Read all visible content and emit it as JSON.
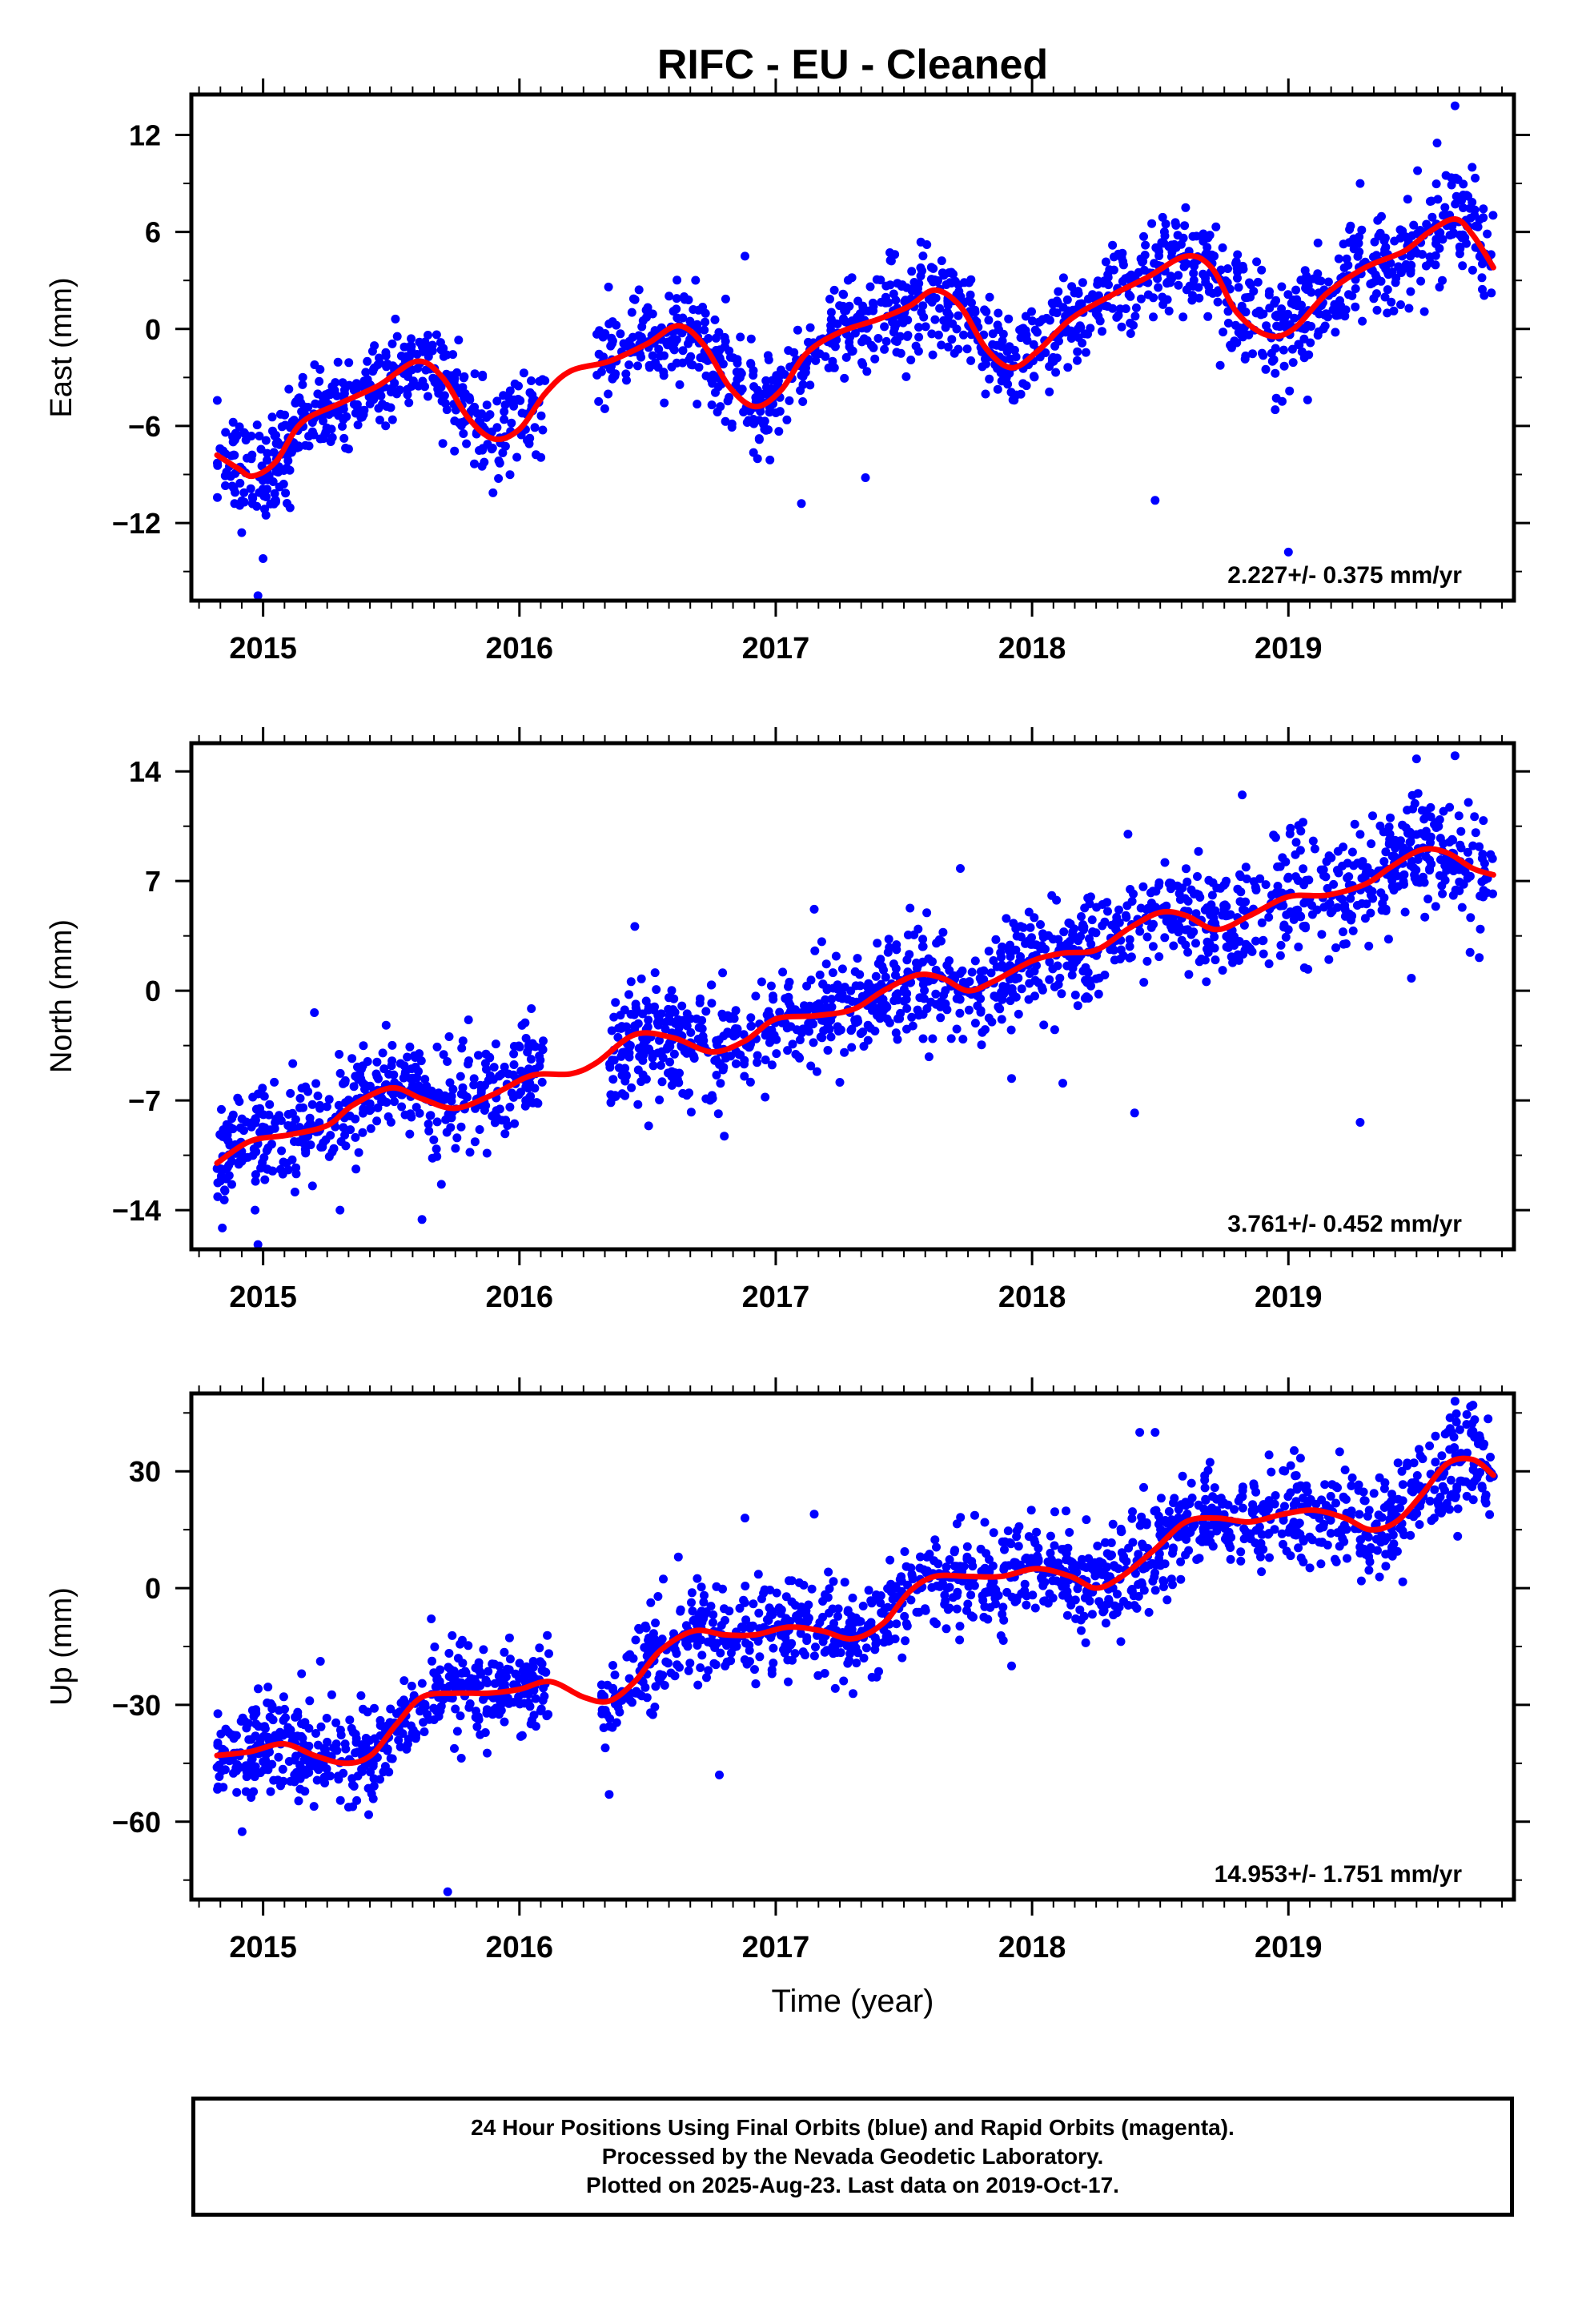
{
  "title": "RIFC  - EU - Cleaned",
  "footer": {
    "line1": "24 Hour Positions Using Final Orbits (blue) and Rapid Orbits (magenta).",
    "line2": "Processed by the Nevada Geodetic Laboratory.",
    "line3": "Plotted on 2025-Aug-23. Last data on 2019-Oct-17."
  },
  "colors": {
    "points": "#0000ff",
    "fit": "#ff0000",
    "axes": "#000000"
  },
  "chart_data": [
    {
      "type": "scatter",
      "panel": "east",
      "ylabel": "East (mm)",
      "xlabel": "",
      "xlim": [
        2014.72,
        2019.88
      ],
      "ylim": [
        -16.8,
        14.5
      ],
      "yticks": [
        12,
        6,
        0,
        -6,
        -12
      ],
      "xticks": [
        2015,
        2016,
        2017,
        2018,
        2019
      ],
      "rate_label": "2.227+/- 0.375 mm/yr",
      "fit_line": [
        [
          2014.82,
          -7.8
        ],
        [
          2014.9,
          -8.6
        ],
        [
          2014.96,
          -9.1
        ],
        [
          2015.05,
          -8.2
        ],
        [
          2015.15,
          -5.8
        ],
        [
          2015.3,
          -4.6
        ],
        [
          2015.45,
          -3.5
        ],
        [
          2015.6,
          -2.0
        ],
        [
          2015.7,
          -3.0
        ],
        [
          2015.8,
          -5.5
        ],
        [
          2015.9,
          -6.8
        ],
        [
          2016.0,
          -6.2
        ],
        [
          2016.1,
          -4.0
        ],
        [
          2016.2,
          -2.6
        ],
        [
          2016.35,
          -2.0
        ],
        [
          2016.5,
          -0.9
        ],
        [
          2016.62,
          0.2
        ],
        [
          2016.72,
          -1.0
        ],
        [
          2016.82,
          -3.6
        ],
        [
          2016.92,
          -4.8
        ],
        [
          2017.02,
          -3.8
        ],
        [
          2017.12,
          -1.5
        ],
        [
          2017.25,
          -0.2
        ],
        [
          2017.4,
          0.6
        ],
        [
          2017.52,
          1.4
        ],
        [
          2017.62,
          2.4
        ],
        [
          2017.72,
          1.4
        ],
        [
          2017.82,
          -1.2
        ],
        [
          2017.92,
          -2.4
        ],
        [
          2018.02,
          -1.4
        ],
        [
          2018.15,
          0.6
        ],
        [
          2018.3,
          2.0
        ],
        [
          2018.45,
          3.2
        ],
        [
          2018.6,
          4.5
        ],
        [
          2018.7,
          3.8
        ],
        [
          2018.8,
          1.0
        ],
        [
          2018.92,
          -0.4
        ],
        [
          2019.02,
          0.0
        ],
        [
          2019.15,
          2.2
        ],
        [
          2019.3,
          3.8
        ],
        [
          2019.45,
          4.8
        ],
        [
          2019.55,
          6.0
        ],
        [
          2019.65,
          6.8
        ],
        [
          2019.72,
          5.8
        ],
        [
          2019.8,
          3.8
        ]
      ],
      "cloud": [
        {
          "x0": 2014.82,
          "x1": 2015.1,
          "n": 110,
          "base": -9.0,
          "slope": 0,
          "spread": 1.6
        },
        {
          "x0": 2015.1,
          "x1": 2015.55,
          "n": 170,
          "base": -5.0,
          "slope": 3.5,
          "spread": 1.2
        },
        {
          "x0": 2015.55,
          "x1": 2015.8,
          "n": 90,
          "base": -2.5,
          "slope": -10,
          "spread": 1.4
        },
        {
          "x0": 2015.8,
          "x1": 2016.1,
          "n": 90,
          "base": -6.2,
          "slope": 4,
          "spread": 1.4
        },
        {
          "x0": 2016.3,
          "x1": 2016.75,
          "n": 160,
          "base": -1.0,
          "slope": 2,
          "spread": 1.5
        },
        {
          "x0": 2016.75,
          "x1": 2017.05,
          "n": 110,
          "base": -3.8,
          "slope": 0,
          "spread": 1.6
        },
        {
          "x0": 2017.05,
          "x1": 2017.7,
          "n": 230,
          "base": -1.0,
          "slope": 5,
          "spread": 1.5
        },
        {
          "x0": 2017.7,
          "x1": 2018.05,
          "n": 120,
          "base": -1.2,
          "slope": -2,
          "spread": 1.5
        },
        {
          "x0": 2018.05,
          "x1": 2018.72,
          "n": 230,
          "base": 0.8,
          "slope": 5,
          "spread": 1.4
        },
        {
          "x0": 2018.72,
          "x1": 2019.05,
          "n": 120,
          "base": 0.0,
          "slope": 0,
          "spread": 1.8
        },
        {
          "x0": 2019.05,
          "x1": 2019.8,
          "n": 260,
          "base": 2.4,
          "slope": 5.5,
          "spread": 1.6
        }
      ],
      "outliers": [
        [
          2014.98,
          -16.5
        ],
        [
          2015.0,
          -14.2
        ],
        [
          2017.1,
          -10.8
        ],
        [
          2017.35,
          -9.2
        ],
        [
          2018.48,
          -10.6
        ],
        [
          2019.0,
          -13.8
        ],
        [
          2019.65,
          13.8
        ],
        [
          2019.58,
          11.5
        ],
        [
          2019.28,
          9.0
        ],
        [
          2016.88,
          4.5
        ]
      ]
    },
    {
      "type": "scatter",
      "panel": "north",
      "ylabel": "North (mm)",
      "xlabel": "",
      "xlim": [
        2014.72,
        2019.88
      ],
      "ylim": [
        -16.5,
        15.8
      ],
      "yticks": [
        14,
        7,
        0,
        -7,
        -14
      ],
      "xticks": [
        2015,
        2016,
        2017,
        2018,
        2019
      ],
      "rate_label": "3.761+/- 0.452 mm/yr",
      "fit_line": [
        [
          2014.82,
          -11.0
        ],
        [
          2014.95,
          -9.6
        ],
        [
          2015.1,
          -9.2
        ],
        [
          2015.25,
          -8.6
        ],
        [
          2015.35,
          -7.3
        ],
        [
          2015.5,
          -6.2
        ],
        [
          2015.62,
          -6.9
        ],
        [
          2015.75,
          -7.5
        ],
        [
          2015.9,
          -6.6
        ],
        [
          2016.05,
          -5.4
        ],
        [
          2016.2,
          -5.3
        ],
        [
          2016.3,
          -4.6
        ],
        [
          2016.45,
          -2.8
        ],
        [
          2016.6,
          -3.0
        ],
        [
          2016.75,
          -3.9
        ],
        [
          2016.88,
          -3.2
        ],
        [
          2017.0,
          -1.8
        ],
        [
          2017.15,
          -1.6
        ],
        [
          2017.3,
          -1.2
        ],
        [
          2017.42,
          0.0
        ],
        [
          2017.55,
          1.0
        ],
        [
          2017.65,
          0.8
        ],
        [
          2017.75,
          0.0
        ],
        [
          2017.85,
          0.6
        ],
        [
          2018.0,
          1.9
        ],
        [
          2018.12,
          2.4
        ],
        [
          2018.25,
          2.6
        ],
        [
          2018.38,
          4.0
        ],
        [
          2018.5,
          5.0
        ],
        [
          2018.6,
          4.8
        ],
        [
          2018.72,
          3.9
        ],
        [
          2018.85,
          4.8
        ],
        [
          2019.0,
          6.0
        ],
        [
          2019.15,
          6.1
        ],
        [
          2019.3,
          6.8
        ],
        [
          2019.4,
          7.9
        ],
        [
          2019.52,
          9.0
        ],
        [
          2019.62,
          8.8
        ],
        [
          2019.72,
          7.8
        ],
        [
          2019.8,
          7.4
        ]
      ],
      "cloud": [
        {
          "x0": 2014.82,
          "x1": 2015.4,
          "n": 220,
          "base": -9.5,
          "slope": 2,
          "spread": 1.8
        },
        {
          "x0": 2015.4,
          "x1": 2016.1,
          "n": 240,
          "base": -7.0,
          "slope": 1.5,
          "spread": 1.7
        },
        {
          "x0": 2016.35,
          "x1": 2017.0,
          "n": 260,
          "base": -3.5,
          "slope": 1.5,
          "spread": 1.7
        },
        {
          "x0": 2017.0,
          "x1": 2017.9,
          "n": 320,
          "base": -1.8,
          "slope": 2.5,
          "spread": 1.7
        },
        {
          "x0": 2017.9,
          "x1": 2018.7,
          "n": 280,
          "base": 1.6,
          "slope": 3.5,
          "spread": 1.7
        },
        {
          "x0": 2018.7,
          "x1": 2019.3,
          "n": 200,
          "base": 4.2,
          "slope": 3.5,
          "spread": 1.9
        },
        {
          "x0": 2019.3,
          "x1": 2019.8,
          "n": 200,
          "base": 7.2,
          "slope": 2,
          "spread": 1.8
        }
      ],
      "outliers": [
        [
          2014.98,
          -16.2
        ],
        [
          2015.3,
          -14.0
        ],
        [
          2015.62,
          -14.6
        ],
        [
          2015.2,
          -1.4
        ],
        [
          2015.48,
          -2.2
        ],
        [
          2016.45,
          4.1
        ],
        [
          2017.15,
          5.2
        ],
        [
          2017.72,
          7.8
        ],
        [
          2017.92,
          -5.6
        ],
        [
          2018.12,
          -5.9
        ],
        [
          2018.4,
          -7.8
        ],
        [
          2018.82,
          12.5
        ],
        [
          2019.28,
          -8.4
        ],
        [
          2019.5,
          14.8
        ],
        [
          2019.65,
          15.0
        ],
        [
          2019.48,
          0.8
        ]
      ]
    },
    {
      "type": "scatter",
      "panel": "up",
      "ylabel": "Up (mm)",
      "xlabel": "Time (year)",
      "xlim": [
        2014.72,
        2019.88
      ],
      "ylim": [
        -80,
        50
      ],
      "yticks": [
        30,
        0,
        -30,
        -60
      ],
      "xticks": [
        2015,
        2016,
        2017,
        2018,
        2019
      ],
      "rate_label": "14.953+/- 1.751 mm/yr",
      "fit_line": [
        [
          2014.82,
          -43
        ],
        [
          2014.95,
          -42
        ],
        [
          2015.08,
          -40
        ],
        [
          2015.2,
          -43
        ],
        [
          2015.32,
          -45
        ],
        [
          2015.42,
          -43
        ],
        [
          2015.52,
          -35
        ],
        [
          2015.62,
          -28
        ],
        [
          2015.75,
          -27
        ],
        [
          2015.88,
          -27
        ],
        [
          2016.0,
          -26
        ],
        [
          2016.12,
          -24
        ],
        [
          2016.25,
          -28
        ],
        [
          2016.35,
          -29
        ],
        [
          2016.45,
          -24
        ],
        [
          2016.55,
          -16
        ],
        [
          2016.68,
          -11
        ],
        [
          2016.8,
          -12
        ],
        [
          2016.92,
          -12
        ],
        [
          2017.05,
          -10
        ],
        [
          2017.18,
          -11
        ],
        [
          2017.3,
          -13
        ],
        [
          2017.42,
          -9
        ],
        [
          2017.52,
          -1
        ],
        [
          2017.62,
          3
        ],
        [
          2017.75,
          3
        ],
        [
          2017.88,
          3
        ],
        [
          2018.02,
          5
        ],
        [
          2018.15,
          3
        ],
        [
          2018.25,
          0
        ],
        [
          2018.35,
          3
        ],
        [
          2018.48,
          10
        ],
        [
          2018.6,
          17
        ],
        [
          2018.72,
          18
        ],
        [
          2018.85,
          17
        ],
        [
          2018.98,
          19
        ],
        [
          2019.1,
          20
        ],
        [
          2019.22,
          18
        ],
        [
          2019.32,
          15
        ],
        [
          2019.42,
          17
        ],
        [
          2019.52,
          24
        ],
        [
          2019.62,
          32
        ],
        [
          2019.72,
          33
        ],
        [
          2019.8,
          29
        ]
      ],
      "cloud": [
        {
          "x0": 2014.82,
          "x1": 2015.45,
          "n": 260,
          "base": -44,
          "slope": 0,
          "spread": 6.5
        },
        {
          "x0": 2015.45,
          "x1": 2016.12,
          "n": 260,
          "base": -33,
          "slope": 10,
          "spread": 6.0
        },
        {
          "x0": 2016.32,
          "x1": 2016.7,
          "n": 140,
          "base": -22,
          "slope": 28,
          "spread": 6.0
        },
        {
          "x0": 2016.7,
          "x1": 2017.42,
          "n": 270,
          "base": -11,
          "slope": 0,
          "spread": 6.0
        },
        {
          "x0": 2017.42,
          "x1": 2018.3,
          "n": 330,
          "base": -4,
          "slope": 8,
          "spread": 6.0
        },
        {
          "x0": 2018.3,
          "x1": 2019.2,
          "n": 330,
          "base": 8,
          "slope": 12,
          "spread": 6.5
        },
        {
          "x0": 2019.2,
          "x1": 2019.8,
          "n": 230,
          "base": 16,
          "slope": 26,
          "spread": 6.5
        }
      ],
      "outliers": [
        [
          2015.72,
          -78
        ],
        [
          2016.35,
          -53
        ],
        [
          2016.78,
          -48
        ],
        [
          2017.92,
          -20
        ],
        [
          2018.42,
          40
        ],
        [
          2018.48,
          40
        ],
        [
          2019.2,
          35
        ],
        [
          2019.65,
          48
        ],
        [
          2019.72,
          47
        ],
        [
          2015.15,
          -22
        ],
        [
          2016.62,
          8
        ],
        [
          2016.88,
          18
        ],
        [
          2017.15,
          19
        ]
      ]
    }
  ]
}
